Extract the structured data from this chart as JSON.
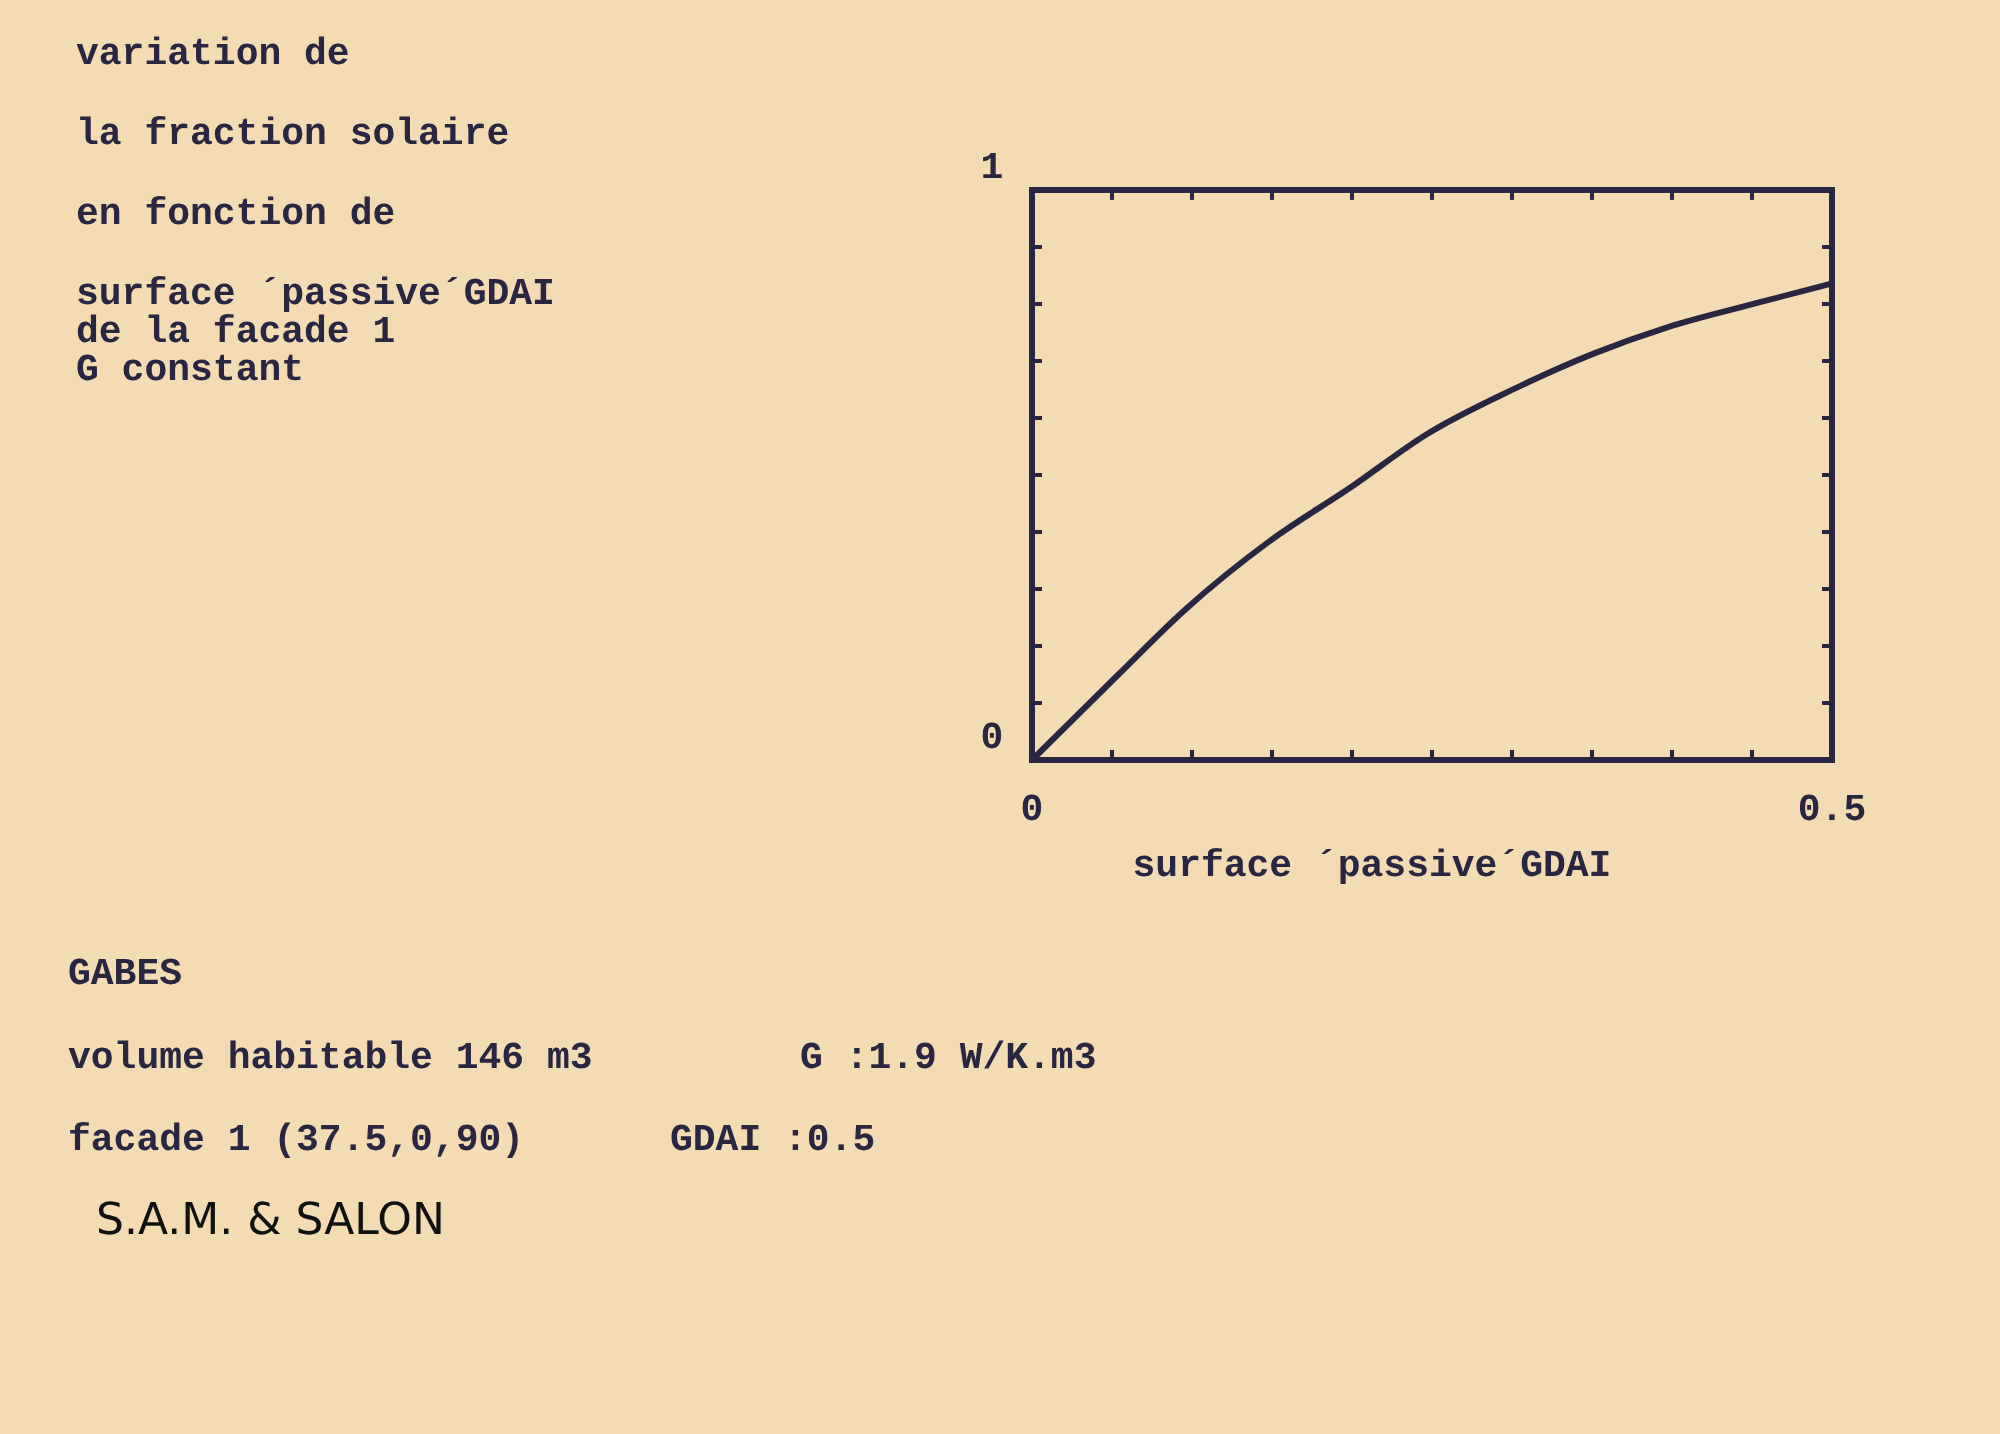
{
  "chart_data": {
    "type": "line",
    "title": "variation de\nla fraction solaire\nen fonction de",
    "subtitle": "surface ´passive´GDAI\nde la facade  1\nG constant",
    "xlabel": "surface ´passive´GDAI",
    "x": [
      0,
      0.054,
      0.095,
      0.149,
      0.199,
      0.247,
      0.299,
      0.351,
      0.398,
      0.452,
      0.5
    ],
    "series": [
      {
        "color": "#2a2540",
        "values": [
          0,
          0.15,
          0.262,
          0.385,
          0.478,
          0.572,
          0.648,
          0.713,
          0.76,
          0.801,
          0.836
        ]
      }
    ],
    "xlim": [
      0,
      0.5
    ],
    "ylim": [
      0,
      1
    ],
    "xticks": [
      0,
      {
        "value": 0.05,
        "label": null
      },
      {
        "value": 0.1,
        "label": null
      },
      {
        "value": 0.15,
        "label": null
      },
      {
        "value": 0.2,
        "label": null
      },
      {
        "value": 0.25,
        "label": null
      },
      {
        "value": 0.3,
        "label": null
      },
      {
        "value": 0.35,
        "label": null
      },
      {
        "value": 0.4,
        "label": null
      },
      {
        "value": 0.45,
        "label": null
      },
      0.5
    ],
    "yticks": [
      0,
      {
        "value": 0.1,
        "label": null
      },
      {
        "value": 0.2,
        "label": null
      },
      {
        "value": 0.3,
        "label": null
      },
      {
        "value": 0.4,
        "label": null
      },
      {
        "value": 0.5,
        "label": null
      },
      {
        "value": 0.6,
        "label": null
      },
      {
        "value": 0.7,
        "label": null
      },
      {
        "value": 0.8,
        "label": null
      },
      {
        "value": 0.9,
        "label": null
      },
      1
    ],
    "annotations": [
      "GABES",
      "volume habitable 146 m3",
      "G :1.9 W/K.m3",
      "facade 1 (37.5,0,90)",
      "GDAI :0.5",
      "S.A.M. & SALON"
    ]
  }
}
